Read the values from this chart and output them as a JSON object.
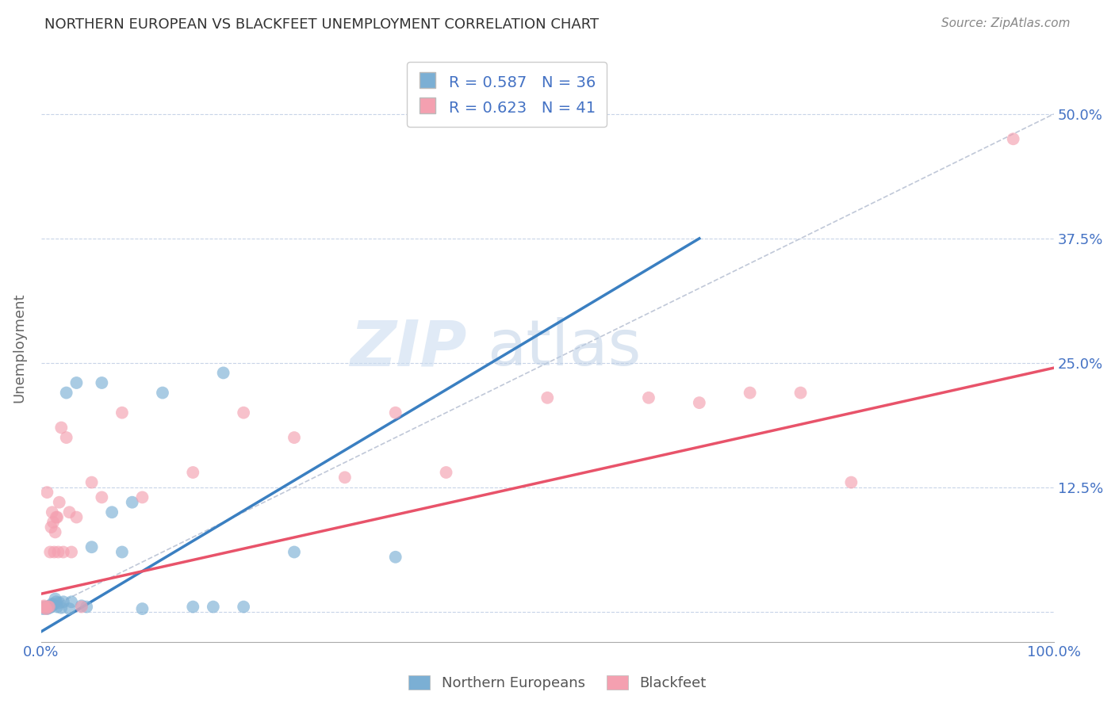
{
  "title": "NORTHERN EUROPEAN VS BLACKFEET UNEMPLOYMENT CORRELATION CHART",
  "source": "Source: ZipAtlas.com",
  "ylabel_label": "Unemployment",
  "legend_labels": [
    "Northern Europeans",
    "Blackfeet"
  ],
  "blue_color": "#7bafd4",
  "pink_color": "#f4a0b0",
  "blue_line_color": "#3a7fc1",
  "pink_line_color": "#e8536a",
  "diagonal_color": "#c0c8d8",
  "R_blue": "0.587",
  "N_blue": "36",
  "R_pink": "0.623",
  "N_pink": "41",
  "text_color": "#4472c4",
  "watermark_zip": "ZIP",
  "watermark_atlas": "atlas",
  "blue_scatter": [
    [
      0.002,
      0.003
    ],
    [
      0.003,
      0.004
    ],
    [
      0.004,
      0.005
    ],
    [
      0.005,
      0.004
    ],
    [
      0.006,
      0.003
    ],
    [
      0.007,
      0.005
    ],
    [
      0.008,
      0.004
    ],
    [
      0.009,
      0.006
    ],
    [
      0.01,
      0.005
    ],
    [
      0.011,
      0.008
    ],
    [
      0.012,
      0.007
    ],
    [
      0.014,
      0.013
    ],
    [
      0.015,
      0.01
    ],
    [
      0.016,
      0.005
    ],
    [
      0.018,
      0.009
    ],
    [
      0.02,
      0.004
    ],
    [
      0.022,
      0.01
    ],
    [
      0.025,
      0.22
    ],
    [
      0.028,
      0.003
    ],
    [
      0.03,
      0.01
    ],
    [
      0.035,
      0.23
    ],
    [
      0.04,
      0.006
    ],
    [
      0.045,
      0.005
    ],
    [
      0.05,
      0.065
    ],
    [
      0.06,
      0.23
    ],
    [
      0.07,
      0.1
    ],
    [
      0.08,
      0.06
    ],
    [
      0.09,
      0.11
    ],
    [
      0.1,
      0.003
    ],
    [
      0.12,
      0.22
    ],
    [
      0.15,
      0.005
    ],
    [
      0.17,
      0.005
    ],
    [
      0.18,
      0.24
    ],
    [
      0.2,
      0.005
    ],
    [
      0.25,
      0.06
    ],
    [
      0.35,
      0.055
    ]
  ],
  "pink_scatter": [
    [
      0.002,
      0.005
    ],
    [
      0.003,
      0.006
    ],
    [
      0.004,
      0.004
    ],
    [
      0.005,
      0.003
    ],
    [
      0.006,
      0.12
    ],
    [
      0.007,
      0.005
    ],
    [
      0.008,
      0.005
    ],
    [
      0.009,
      0.06
    ],
    [
      0.01,
      0.085
    ],
    [
      0.011,
      0.1
    ],
    [
      0.012,
      0.09
    ],
    [
      0.013,
      0.06
    ],
    [
      0.014,
      0.08
    ],
    [
      0.015,
      0.095
    ],
    [
      0.016,
      0.095
    ],
    [
      0.017,
      0.06
    ],
    [
      0.018,
      0.11
    ],
    [
      0.02,
      0.185
    ],
    [
      0.022,
      0.06
    ],
    [
      0.025,
      0.175
    ],
    [
      0.028,
      0.1
    ],
    [
      0.03,
      0.06
    ],
    [
      0.035,
      0.095
    ],
    [
      0.04,
      0.005
    ],
    [
      0.05,
      0.13
    ],
    [
      0.06,
      0.115
    ],
    [
      0.08,
      0.2
    ],
    [
      0.1,
      0.115
    ],
    [
      0.15,
      0.14
    ],
    [
      0.2,
      0.2
    ],
    [
      0.25,
      0.175
    ],
    [
      0.3,
      0.135
    ],
    [
      0.35,
      0.2
    ],
    [
      0.4,
      0.14
    ],
    [
      0.5,
      0.215
    ],
    [
      0.6,
      0.215
    ],
    [
      0.65,
      0.21
    ],
    [
      0.7,
      0.22
    ],
    [
      0.75,
      0.22
    ],
    [
      0.8,
      0.13
    ],
    [
      0.96,
      0.475
    ]
  ],
  "blue_line_x": [
    0.0,
    0.65
  ],
  "blue_line_y": [
    -0.02,
    0.375
  ],
  "pink_line_x": [
    0.0,
    1.0
  ],
  "pink_line_y": [
    0.018,
    0.245
  ],
  "diagonal_line_x": [
    0.0,
    1.0
  ],
  "diagonal_line_y": [
    0.0,
    0.5
  ],
  "xlim": [
    0.0,
    1.0
  ],
  "ylim": [
    -0.03,
    0.56
  ],
  "yticks": [
    0.0,
    0.125,
    0.25,
    0.375,
    0.5
  ],
  "ytick_labels": [
    "",
    "12.5%",
    "25.0%",
    "37.5%",
    "50.0%"
  ],
  "xticks": [
    0.0,
    0.2,
    0.4,
    0.6,
    0.8,
    1.0
  ],
  "xtick_labels_show": [
    "0.0%",
    "",
    "",
    "",
    "",
    "100.0%"
  ]
}
